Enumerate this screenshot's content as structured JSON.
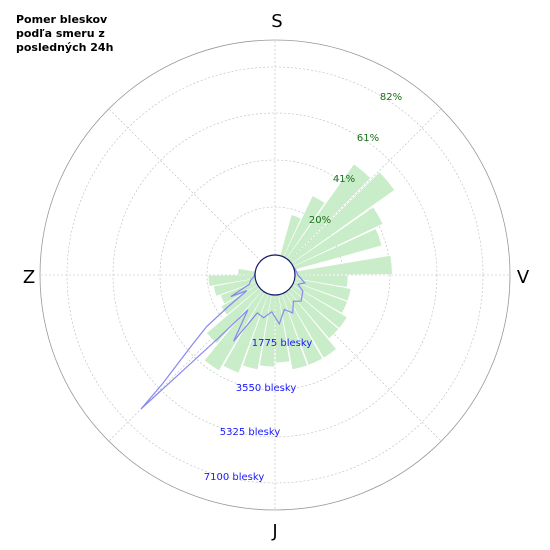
{
  "title": "Pomer bleskov\npodľa smeru z\nposledných 24h",
  "colors": {
    "ring": "#999999",
    "grid": "#bbbbbb",
    "bars": "#c9ecc9",
    "line": "#8888ee",
    "center_stroke": "#1a1a6e",
    "pct_text": "#1a6e1a",
    "cnt_text": "#1a1aff"
  },
  "compass": {
    "north": "S",
    "east": "V",
    "south": "J",
    "west": "Z"
  },
  "chart_data": {
    "type": "polar",
    "orientation": "north-up, clockwise",
    "percent_ring_labels": [
      "20%",
      "41%",
      "61%",
      "82%"
    ],
    "count_ring_labels": [
      "1775 blesky",
      "3550 blesky",
      "5325 blesky",
      "7100 blesky"
    ],
    "percent_max": 102,
    "count_max": 8875,
    "bars": [
      {
        "dir": 20,
        "pct": 20
      },
      {
        "dir": 30,
        "pct": 32
      },
      {
        "dir": 40,
        "pct": 55
      },
      {
        "dir": 50,
        "pct": 60
      },
      {
        "dir": 60,
        "pct": 47
      },
      {
        "dir": 70,
        "pct": 43
      },
      {
        "dir": 85,
        "pct": 46
      },
      {
        "dir": 95,
        "pct": 25
      },
      {
        "dir": 105,
        "pct": 27
      },
      {
        "dir": 115,
        "pct": 27
      },
      {
        "dir": 125,
        "pct": 30
      },
      {
        "dir": 135,
        "pct": 30
      },
      {
        "dir": 145,
        "pct": 36
      },
      {
        "dir": 155,
        "pct": 36
      },
      {
        "dir": 165,
        "pct": 36
      },
      {
        "dir": 175,
        "pct": 32
      },
      {
        "dir": 185,
        "pct": 34
      },
      {
        "dir": 195,
        "pct": 36
      },
      {
        "dir": 205,
        "pct": 40
      },
      {
        "dir": 215,
        "pct": 43
      },
      {
        "dir": 225,
        "pct": 33
      },
      {
        "dir": 235,
        "pct": 20
      },
      {
        "dir": 245,
        "pct": 18
      },
      {
        "dir": 255,
        "pct": 20
      },
      {
        "dir": 265,
        "pct": 22
      },
      {
        "dir": 275,
        "pct": 8
      }
    ],
    "counts": [
      {
        "dir": 0,
        "count": 0
      },
      {
        "dir": 40,
        "count": 10
      },
      {
        "dir": 75,
        "count": 50
      },
      {
        "dir": 90,
        "count": 120
      },
      {
        "dir": 105,
        "count": 450
      },
      {
        "dir": 112,
        "count": 200
      },
      {
        "dir": 120,
        "count": 500
      },
      {
        "dir": 135,
        "count": 700
      },
      {
        "dir": 145,
        "count": 500
      },
      {
        "dir": 155,
        "count": 900
      },
      {
        "dir": 165,
        "count": 650
      },
      {
        "dir": 175,
        "count": 1200
      },
      {
        "dir": 185,
        "count": 700
      },
      {
        "dir": 195,
        "count": 1000
      },
      {
        "dir": 205,
        "count": 900
      },
      {
        "dir": 212,
        "count": 2400
      },
      {
        "dir": 218,
        "count": 1000
      },
      {
        "dir": 222,
        "count": 2700
      },
      {
        "dir": 225,
        "count": 7000
      },
      {
        "dir": 226,
        "count": 5600
      },
      {
        "dir": 230,
        "count": 3600
      },
      {
        "dir": 233,
        "count": 2700
      },
      {
        "dir": 236,
        "count": 1500
      },
      {
        "dir": 241,
        "count": 500
      },
      {
        "dir": 244,
        "count": 1200
      },
      {
        "dir": 250,
        "count": 300
      },
      {
        "dir": 258,
        "count": 200
      },
      {
        "dir": 265,
        "count": 50
      },
      {
        "dir": 300,
        "count": 0
      },
      {
        "dir": 360,
        "count": 0
      }
    ]
  }
}
